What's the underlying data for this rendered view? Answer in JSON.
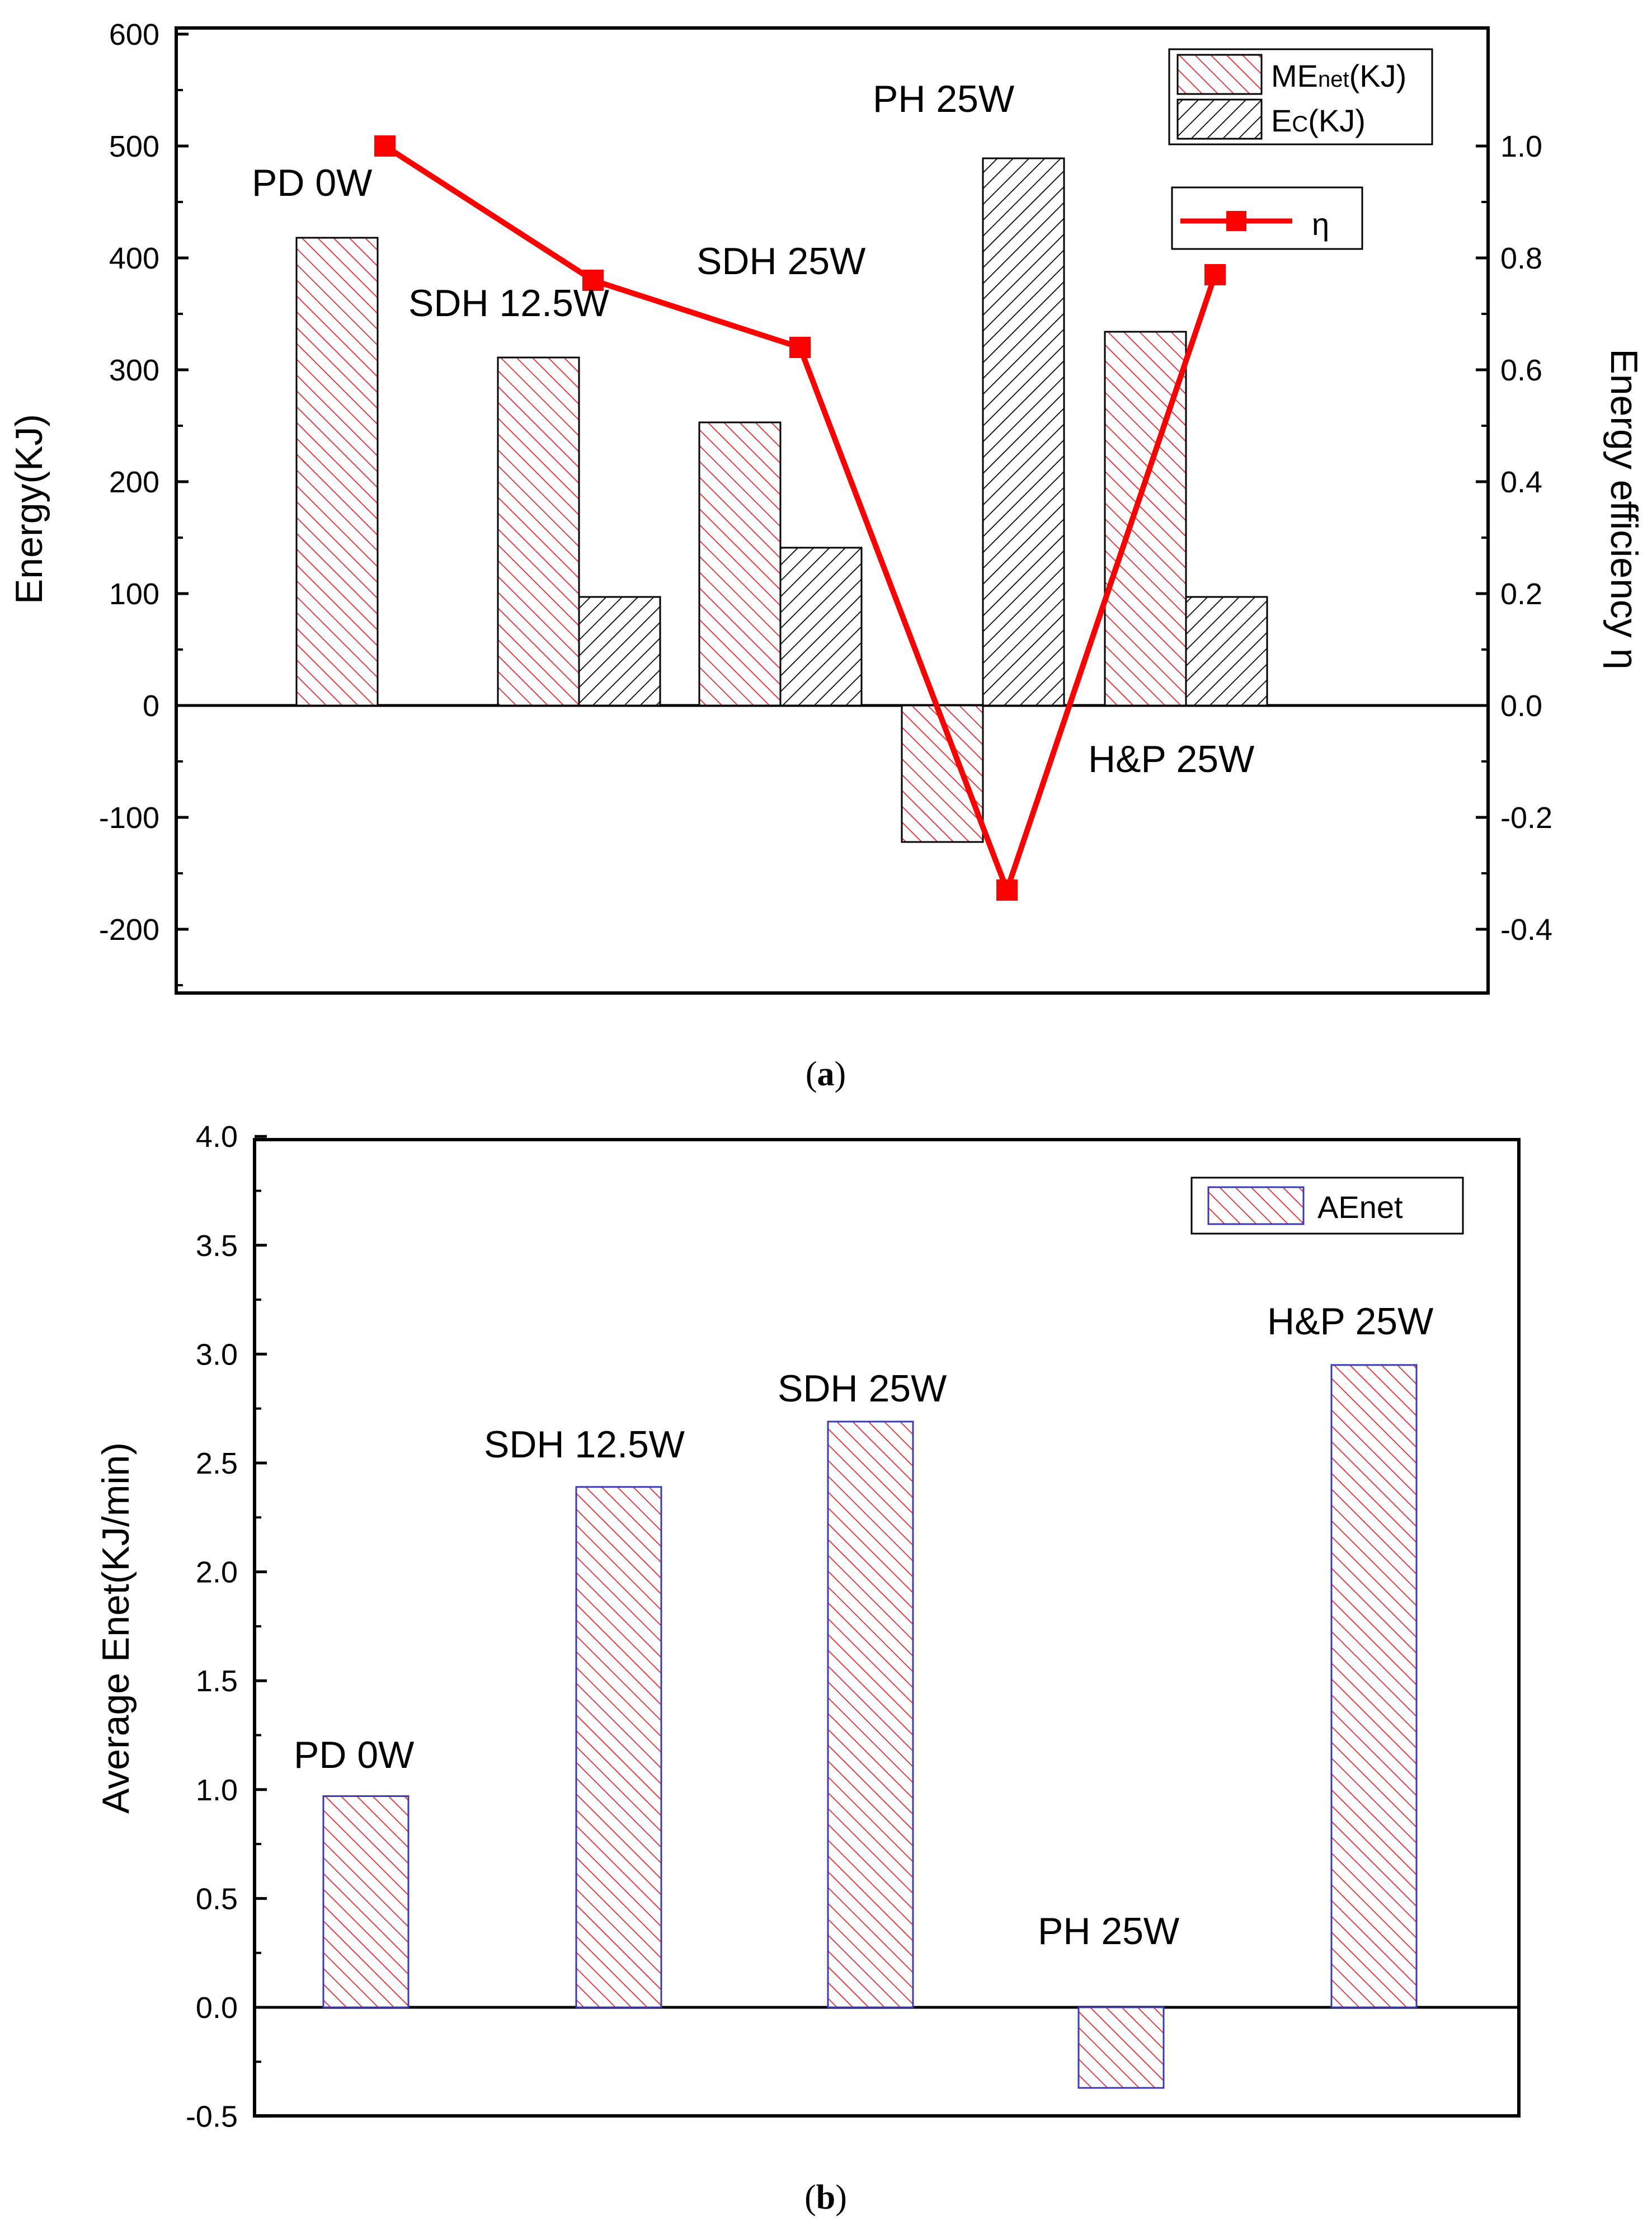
{
  "chart_data": [
    {
      "panel": "a",
      "type": "bar",
      "categories": [
        "PD 0W",
        "SDH 12.5W",
        "SDH 25W",
        "PH 25W",
        "H&P 25W"
      ],
      "series": [
        {
          "name": "MEnet(KJ)",
          "legend_main": "ME",
          "legend_sub": "net",
          "legend_tail": "(KJ)",
          "color": "#e8282b",
          "pattern": "red-hatch",
          "values": [
            418,
            311,
            253,
            -122,
            334
          ]
        },
        {
          "name": "EC(KJ)",
          "legend_main": "E",
          "legend_sub": "C",
          "legend_tail": "(KJ)",
          "color": "#000000",
          "pattern": "black-hatch",
          "values": [
            null,
            97,
            141,
            489,
            97
          ]
        }
      ],
      "line_series": {
        "name": "η",
        "color": "#ff0000",
        "axis": "right",
        "values": [
          1.0,
          0.76,
          0.64,
          -0.33,
          0.77
        ]
      },
      "ylabel": "Energy(KJ)",
      "y2label": "Energy efficiency η",
      "ylim": [
        -250,
        600
      ],
      "y2lim": [
        -0.5,
        1.15
      ],
      "yticks": [
        "600",
        "500",
        "400",
        "300",
        "200",
        "100",
        "0",
        "-100",
        "-200"
      ],
      "y2ticks": [
        "1.0",
        "0.8",
        "0.6",
        "0.4",
        "0.2",
        "0.0",
        "-0.2",
        "-0.4"
      ],
      "annotations": [
        "PD 0W",
        "SDH 12.5W",
        "SDH 25W",
        "PH 25W",
        "H&P 25W"
      ],
      "panel_label": "a"
    },
    {
      "panel": "b",
      "type": "bar",
      "categories": [
        "PD 0W",
        "SDH 12.5W",
        "SDH 25W",
        "PH 25W",
        "H&P 25W"
      ],
      "series": [
        {
          "name": "AEnet",
          "color": "#e8282b",
          "border": "#3a3ab5",
          "pattern": "red-hatch",
          "values": [
            0.97,
            2.39,
            2.69,
            -0.37,
            2.95
          ]
        }
      ],
      "ylabel": "Average Enet(KJ/min)",
      "ylim": [
        -0.5,
        4.0
      ],
      "yticks": [
        "4.0",
        "3.5",
        "3.0",
        "2.5",
        "2.0",
        "1.5",
        "1.0",
        "0.5",
        "0.0",
        "-0.5"
      ],
      "annotations": [
        "PD 0W",
        "SDH 12.5W",
        "SDH 25W",
        "PH 25W",
        "H&P 25W"
      ],
      "panel_label": "b"
    }
  ]
}
